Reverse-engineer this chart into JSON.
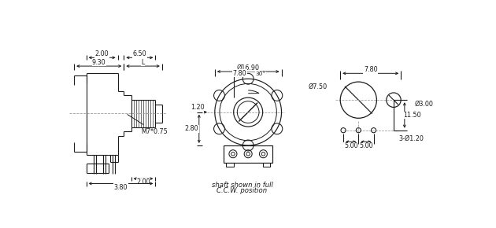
{
  "bg_color": "#ffffff",
  "lc": "#1a1a1a",
  "dc": "#999999",
  "fs": 5.8,
  "annotations": {
    "dim_930": "9.30",
    "dim_L": "L",
    "dim_200_top": "2.00",
    "dim_650": "6.50",
    "dim_M7": "M7*0.75",
    "dim_200_bot": "2.00",
    "dim_380": "3.80",
    "dim_1690": "Ø16.90",
    "dim_780_front": "7.80",
    "dim_30": "30°",
    "dim_120": "1.20",
    "dim_280": "2.80",
    "dim_780_right": "7.80",
    "dim_750": "Ø7.50",
    "dim_300": "Ø3.00",
    "dim_1150": "11.50",
    "dim_120pin": "3-Ø1.20",
    "dim_500_left": "5.00",
    "dim_500_right": "5.00",
    "note1": "shaft shown in full",
    "note2": "C.C.W. position"
  }
}
